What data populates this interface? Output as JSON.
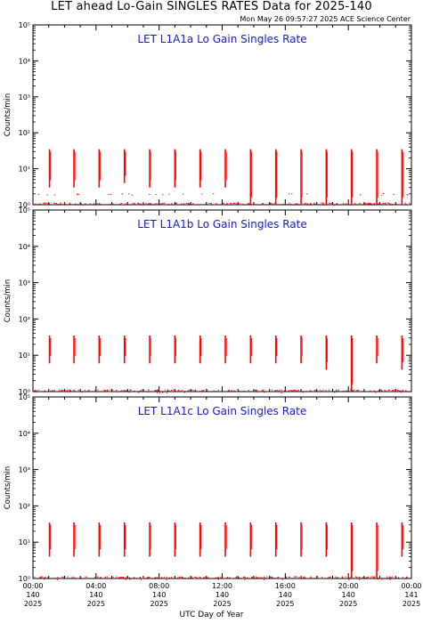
{
  "header": {
    "title": "LET ahead Lo-Gain SINGLES RATES Data for 2025-140",
    "timestamp": "Mon May 26 09:57:27 2025 ACE Science Center"
  },
  "x_axis": {
    "label": "UTC Day of Year",
    "ticks": [
      {
        "time": "00:00",
        "doy": "140",
        "year": "2025"
      },
      {
        "time": "04:00",
        "doy": "140",
        "year": "2025"
      },
      {
        "time": "08:00",
        "doy": "140",
        "year": "2025"
      },
      {
        "time": "12:00",
        "doy": "140",
        "year": "2025"
      },
      {
        "time": "16:00",
        "doy": "140",
        "year": "2025"
      },
      {
        "time": "20:00",
        "doy": "140",
        "year": "2025"
      },
      {
        "time": "00:00",
        "doy": "141",
        "year": "2025"
      }
    ]
  },
  "colors": {
    "data": "#ff0000",
    "panel_title": "#1a1ad6",
    "axes": "#000000"
  },
  "chart_data": [
    {
      "type": "scatter",
      "title": "LET L1A1a Lo Gain Singles Rate",
      "ylabel": "Counts/min",
      "yscale": "log",
      "ylim": [
        1,
        100000
      ],
      "xlim_hours": [
        0,
        24
      ],
      "y_tick_labels": [
        "10⁰",
        "10¹",
        "10²",
        "10³",
        "10⁴",
        "10⁵"
      ],
      "x_tick_hours": [
        0,
        4,
        8,
        12,
        16,
        20,
        24
      ],
      "bursts": [
        {
          "hour": 1.05,
          "low": 3,
          "high": 35
        },
        {
          "hour": 2.6,
          "low": 3,
          "high": 35
        },
        {
          "hour": 4.2,
          "low": 3,
          "high": 35
        },
        {
          "hour": 5.8,
          "low": 4,
          "high": 35
        },
        {
          "hour": 7.4,
          "low": 3,
          "high": 35
        },
        {
          "hour": 9.0,
          "low": 3,
          "high": 35
        },
        {
          "hour": 10.6,
          "low": 3,
          "high": 35
        },
        {
          "hour": 12.2,
          "low": 3,
          "high": 35
        },
        {
          "hour": 13.8,
          "low": 1,
          "high": 35
        },
        {
          "hour": 15.4,
          "low": 1,
          "high": 35
        },
        {
          "hour": 17.0,
          "low": 1,
          "high": 35
        },
        {
          "hour": 18.6,
          "low": 1,
          "high": 35
        },
        {
          "hour": 20.2,
          "low": 1,
          "high": 35
        },
        {
          "hour": 21.8,
          "low": 1,
          "high": 35
        },
        {
          "hour": 23.4,
          "low": 1,
          "high": 35
        }
      ],
      "baseline": 1,
      "scatter_level": 2
    },
    {
      "type": "scatter",
      "title": "LET L1A1b Lo Gain Singles Rate",
      "ylabel": "Counts/min",
      "yscale": "log",
      "ylim": [
        1,
        100000
      ],
      "xlim_hours": [
        0,
        24
      ],
      "y_tick_labels": [
        "10⁰",
        "10¹",
        "10²",
        "10³",
        "10⁴",
        "10⁵"
      ],
      "x_tick_hours": [
        0,
        4,
        8,
        12,
        16,
        20,
        24
      ],
      "bursts": [
        {
          "hour": 1.05,
          "low": 6,
          "high": 35
        },
        {
          "hour": 2.6,
          "low": 6,
          "high": 35
        },
        {
          "hour": 4.2,
          "low": 6,
          "high": 35
        },
        {
          "hour": 5.8,
          "low": 6,
          "high": 35
        },
        {
          "hour": 7.4,
          "low": 6,
          "high": 35
        },
        {
          "hour": 9.0,
          "low": 6,
          "high": 35
        },
        {
          "hour": 10.6,
          "low": 6,
          "high": 35
        },
        {
          "hour": 12.2,
          "low": 6,
          "high": 35
        },
        {
          "hour": 13.8,
          "low": 6,
          "high": 35
        },
        {
          "hour": 15.4,
          "low": 6,
          "high": 35
        },
        {
          "hour": 17.0,
          "low": 6,
          "high": 35
        },
        {
          "hour": 18.6,
          "low": 4,
          "high": 35
        },
        {
          "hour": 20.2,
          "low": 1,
          "high": 35
        },
        {
          "hour": 21.8,
          "low": 6,
          "high": 35
        },
        {
          "hour": 23.4,
          "low": 4,
          "high": 35
        }
      ],
      "baseline": 1,
      "scatter_level": 1
    },
    {
      "type": "scatter",
      "title": "LET L1A1c Lo Gain Singles Rate",
      "ylabel": "Counts/min",
      "yscale": "log",
      "ylim": [
        1,
        100000
      ],
      "xlim_hours": [
        0,
        24
      ],
      "y_tick_labels": [
        "10⁰",
        "10¹",
        "10²",
        "10³",
        "10⁴",
        "10⁵"
      ],
      "x_tick_hours": [
        0,
        4,
        8,
        12,
        16,
        20,
        24
      ],
      "bursts": [
        {
          "hour": 1.05,
          "low": 4,
          "high": 35
        },
        {
          "hour": 2.6,
          "low": 4,
          "high": 35
        },
        {
          "hour": 4.2,
          "low": 4,
          "high": 35
        },
        {
          "hour": 5.8,
          "low": 4,
          "high": 35
        },
        {
          "hour": 7.4,
          "low": 4,
          "high": 35
        },
        {
          "hour": 9.0,
          "low": 4,
          "high": 35
        },
        {
          "hour": 10.6,
          "low": 4,
          "high": 35
        },
        {
          "hour": 12.2,
          "low": 4,
          "high": 35
        },
        {
          "hour": 13.8,
          "low": 4,
          "high": 35
        },
        {
          "hour": 15.4,
          "low": 4,
          "high": 35
        },
        {
          "hour": 17.0,
          "low": 4,
          "high": 35
        },
        {
          "hour": 18.6,
          "low": 4,
          "high": 35
        },
        {
          "hour": 20.2,
          "low": 1,
          "high": 35
        },
        {
          "hour": 21.8,
          "low": 1,
          "high": 35
        },
        {
          "hour": 23.4,
          "low": 4,
          "high": 35
        }
      ],
      "baseline": 1,
      "scatter_level": 1
    }
  ]
}
